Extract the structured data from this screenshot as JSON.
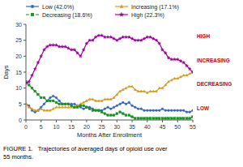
{
  "chart_data": {
    "type": "line",
    "xlabel": "Months After Enrollment",
    "ylabel": "Days",
    "x": [
      0,
      1,
      2,
      3,
      4,
      5,
      6,
      7,
      8,
      9,
      10,
      11,
      12,
      13,
      14,
      15,
      16,
      17,
      18,
      19,
      20,
      21,
      22,
      23,
      24,
      25,
      26,
      27,
      28,
      29,
      30,
      31,
      32,
      33,
      34,
      35,
      36,
      37,
      38,
      39,
      40,
      41,
      42,
      43,
      44,
      45,
      46,
      47,
      48,
      49,
      50,
      51,
      52,
      53,
      54,
      55
    ],
    "xlim": [
      0,
      55
    ],
    "xticks": [
      0,
      5,
      10,
      15,
      20,
      25,
      30,
      35,
      40,
      45,
      50,
      55
    ],
    "ylim": [
      0,
      30
    ],
    "yticks": [
      0,
      5,
      10,
      15,
      20,
      25,
      30
    ],
    "grid": false,
    "legend": "top",
    "series": [
      {
        "name": "Low (42.0%)",
        "marker": "circle",
        "line_style": "solid",
        "values": [
          5,
          4.5,
          3,
          2.5,
          3,
          4,
          5,
          6,
          7,
          7.5,
          7,
          6,
          5,
          5,
          5,
          5,
          5,
          4.5,
          4,
          3.5,
          4,
          4,
          3.5,
          3,
          3,
          3,
          3.5,
          4,
          3.5,
          4,
          4.5,
          5,
          5.5,
          5,
          5.5,
          4.5,
          4,
          3.5,
          3.5,
          3,
          3,
          3,
          3,
          3,
          3,
          3.5,
          3,
          3,
          3,
          3,
          3,
          3,
          3,
          2.5,
          2.5,
          3
        ]
      },
      {
        "name": "Increasing (17.1%)",
        "marker": "triangle",
        "line_style": "solid",
        "values": [
          5,
          4,
          3.5,
          3,
          3,
          3.5,
          3,
          3,
          3,
          3.5,
          4,
          4,
          4,
          4,
          4,
          4,
          4,
          4.5,
          5,
          5.5,
          6,
          6.5,
          6.5,
          6,
          6,
          6,
          6.5,
          6.5,
          6.5,
          7,
          8,
          9,
          9.5,
          10,
          10.5,
          10.5,
          9.5,
          9,
          9,
          9,
          8.5,
          9,
          9,
          9,
          10,
          10,
          11,
          12,
          12.5,
          13,
          13,
          13.5,
          14,
          14,
          14.5,
          15
        ]
      },
      {
        "name": "Decreasing (18.6%)",
        "marker": "square",
        "line_style": "dashed",
        "values": [
          12,
          11,
          10,
          9,
          8,
          7,
          7,
          6,
          6,
          6,
          5.5,
          5,
          5,
          5,
          5,
          4.5,
          4,
          4,
          4.5,
          4.5,
          4,
          3.5,
          3,
          3,
          3,
          2.5,
          2,
          1.5,
          1.5,
          1.5,
          2,
          2.5,
          2,
          1.5,
          1.5,
          1,
          0.5,
          0.5,
          0.5,
          0.5,
          0.5,
          0.5,
          0.5,
          0.5,
          0.5,
          0.5,
          0.5,
          0.5,
          0.5,
          0.5,
          0.5,
          0.5,
          0.5,
          0.5,
          0.5,
          1
        ]
      },
      {
        "name": "High (22.3%)",
        "marker": "star",
        "line_style": "solid",
        "values": [
          11.5,
          12,
          14,
          16,
          18,
          20,
          22,
          23,
          23.5,
          23.5,
          23.5,
          23,
          23,
          23,
          22.5,
          22,
          22,
          21,
          20,
          22,
          24,
          25,
          25,
          26,
          26.5,
          26.5,
          26,
          26,
          26,
          25.5,
          25,
          25.5,
          26,
          26,
          26,
          25.5,
          25,
          25,
          25,
          25.5,
          26,
          26,
          25.5,
          25,
          24,
          22,
          21,
          19.5,
          19,
          19,
          19,
          18.5,
          18,
          17,
          16,
          15
        ]
      }
    ],
    "annotations": [
      {
        "text": "HIGH",
        "color": "#cc0000"
      },
      {
        "text": "INCREASING",
        "color": "#cc0000"
      },
      {
        "text": "DECREASING",
        "color": "#cc0000"
      },
      {
        "text": "LOW",
        "color": "#cc0000"
      }
    ],
    "captions": [
      "FIGURE 1.   Trajectories of averaged days of opioid use over",
      "55 months."
    ]
  }
}
